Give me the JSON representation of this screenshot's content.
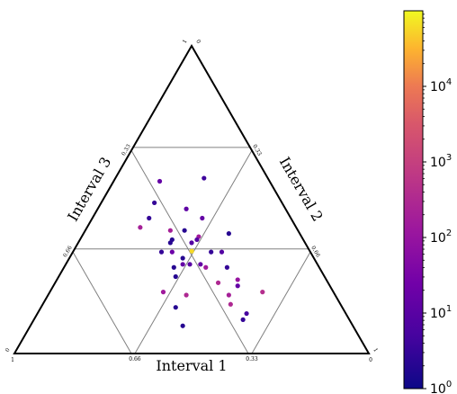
{
  "chart_data": {
    "type": "scatter",
    "subtype": "ternary",
    "axes": {
      "bottom": {
        "label": "Interval 1",
        "ticks": [
          {
            "value": 0.66,
            "label": "0.66"
          },
          {
            "value": 0.33,
            "label": "0.33"
          }
        ]
      },
      "right": {
        "label": "Interval 2",
        "ticks": [
          {
            "value": 0.33,
            "label": "0.33"
          },
          {
            "value": 0.66,
            "label": "0.66"
          }
        ]
      },
      "left": {
        "label": "Interval 3",
        "ticks": [
          {
            "value": 0.66,
            "label": "0.66"
          },
          {
            "value": 0.33,
            "label": "0.33"
          }
        ]
      }
    },
    "corner_labels": {
      "top": [
        "1",
        "0"
      ],
      "bottom_left": [
        "0",
        "1"
      ],
      "bottom_right": [
        "1",
        "0"
      ]
    },
    "grid": true,
    "grid_lines": [
      0.33,
      0.66
    ],
    "colorbar": {
      "scale": "log",
      "colormap": "plasma",
      "min": 1,
      "max": 100000,
      "ticks": [
        {
          "exp": 0,
          "label": "10",
          "sup": "0"
        },
        {
          "exp": 1,
          "label": "10",
          "sup": "1"
        },
        {
          "exp": 2,
          "label": "10",
          "sup": "2"
        },
        {
          "exp": 3,
          "label": "10",
          "sup": "3"
        },
        {
          "exp": 4,
          "label": "10",
          "sup": "4"
        }
      ]
    },
    "points": [
      {
        "i1": 0.333,
        "i2": 0.333,
        "i3": 0.334,
        "value": 60000
      },
      {
        "i1": 0.18,
        "i2": 0.57,
        "i3": 0.25,
        "value": 4
      },
      {
        "i1": 0.25,
        "i2": 0.44,
        "i3": 0.31,
        "value": 15
      },
      {
        "i1": 0.29,
        "i2": 0.38,
        "i3": 0.33,
        "value": 150
      },
      {
        "i1": 0.28,
        "i2": 0.47,
        "i3": 0.25,
        "value": 12
      },
      {
        "i1": 0.32,
        "i2": 0.36,
        "i3": 0.32,
        "value": 8
      },
      {
        "i1": 0.32,
        "i2": 0.4,
        "i3": 0.28,
        "value": 2
      },
      {
        "i1": 0.36,
        "i2": 0.49,
        "i3": 0.15,
        "value": 3
      },
      {
        "i1": 0.4,
        "i2": 0.44,
        "i3": 0.16,
        "value": 3
      },
      {
        "i1": 0.31,
        "i2": 0.56,
        "i3": 0.13,
        "value": 15
      },
      {
        "i1": 0.37,
        "i2": 0.37,
        "i3": 0.26,
        "value": 2
      },
      {
        "i1": 0.38,
        "i2": 0.36,
        "i3": 0.26,
        "value": 2
      },
      {
        "i1": 0.36,
        "i2": 0.4,
        "i3": 0.24,
        "value": 200
      },
      {
        "i1": 0.44,
        "i2": 0.41,
        "i3": 0.15,
        "value": 200
      },
      {
        "i1": 0.42,
        "i2": 0.33,
        "i3": 0.25,
        "value": 3
      },
      {
        "i1": 0.39,
        "i2": 0.33,
        "i3": 0.28,
        "value": 20
      },
      {
        "i1": 0.41,
        "i2": 0.28,
        "i3": 0.31,
        "value": 2
      },
      {
        "i1": 0.38,
        "i2": 0.29,
        "i3": 0.33,
        "value": 15
      },
      {
        "i1": 0.42,
        "i2": 0.25,
        "i3": 0.33,
        "value": 2
      },
      {
        "i1": 0.48,
        "i2": 0.2,
        "i3": 0.32,
        "value": 150
      },
      {
        "i1": 0.47,
        "i2": 0.15,
        "i3": 0.38,
        "value": 2
      },
      {
        "i1": 0.37,
        "i2": 0.31,
        "i3": 0.32,
        "value": 2
      },
      {
        "i1": 0.42,
        "i2": 0.19,
        "i3": 0.39,
        "value": 300
      },
      {
        "i1": 0.48,
        "i2": 0.09,
        "i3": 0.43,
        "value": 2
      },
      {
        "i1": 0.36,
        "i2": 0.29,
        "i3": 0.35,
        "value": 10
      },
      {
        "i1": 0.33,
        "i2": 0.29,
        "i3": 0.38,
        "value": 15
      },
      {
        "i1": 0.32,
        "i2": 0.28,
        "i3": 0.4,
        "value": 150
      },
      {
        "i1": 0.31,
        "i2": 0.23,
        "i3": 0.46,
        "value": 300
      },
      {
        "i1": 0.3,
        "i2": 0.19,
        "i3": 0.51,
        "value": 200
      },
      {
        "i1": 0.26,
        "i2": 0.22,
        "i3": 0.52,
        "value": 15
      },
      {
        "i1": 0.31,
        "i2": 0.16,
        "i3": 0.53,
        "value": 300
      },
      {
        "i1": 0.28,
        "i2": 0.13,
        "i3": 0.59,
        "value": 5
      },
      {
        "i1": 0.3,
        "i2": 0.11,
        "i3": 0.59,
        "value": 3
      },
      {
        "i1": 0.28,
        "i2": 0.33,
        "i3": 0.39,
        "value": 3
      },
      {
        "i1": 0.2,
        "i2": 0.39,
        "i3": 0.41,
        "value": 2
      },
      {
        "i1": 0.25,
        "i2": 0.33,
        "i3": 0.42,
        "value": 8
      },
      {
        "i1": 0.26,
        "i2": 0.28,
        "i3": 0.46,
        "value": 3
      },
      {
        "i1": 0.2,
        "i2": 0.2,
        "i3": 0.6,
        "value": 400
      },
      {
        "i1": 0.25,
        "i2": 0.24,
        "i3": 0.51,
        "value": 100
      },
      {
        "i1": 0.3,
        "i2": 0.37,
        "i3": 0.33,
        "value": 8
      }
    ]
  }
}
